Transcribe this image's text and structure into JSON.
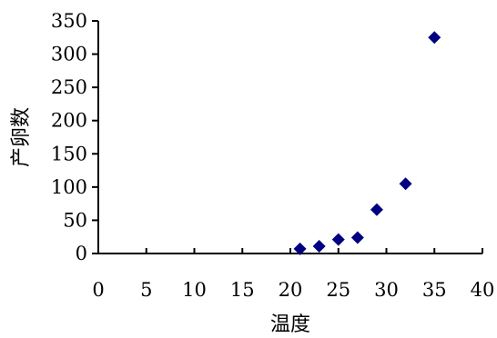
{
  "chart_data": {
    "type": "scatter",
    "title": "",
    "xlabel": "温度",
    "ylabel": "产卵数",
    "xlim": [
      0,
      40
    ],
    "ylim": [
      0,
      350
    ],
    "xticks": [
      "0",
      "5",
      "10",
      "15",
      "20",
      "25",
      "30",
      "35",
      "40"
    ],
    "yticks": [
      "0",
      "50",
      "100",
      "150",
      "200",
      "250",
      "300",
      "350"
    ],
    "grid": false,
    "legend": "none",
    "marker": "diamond",
    "marker_color": "#000080",
    "axis_color": "#000000",
    "series": [
      {
        "x": [
          21,
          23,
          25,
          27,
          29,
          32,
          35
        ],
        "y": [
          7,
          11,
          21,
          24,
          66,
          105,
          325
        ]
      }
    ]
  }
}
